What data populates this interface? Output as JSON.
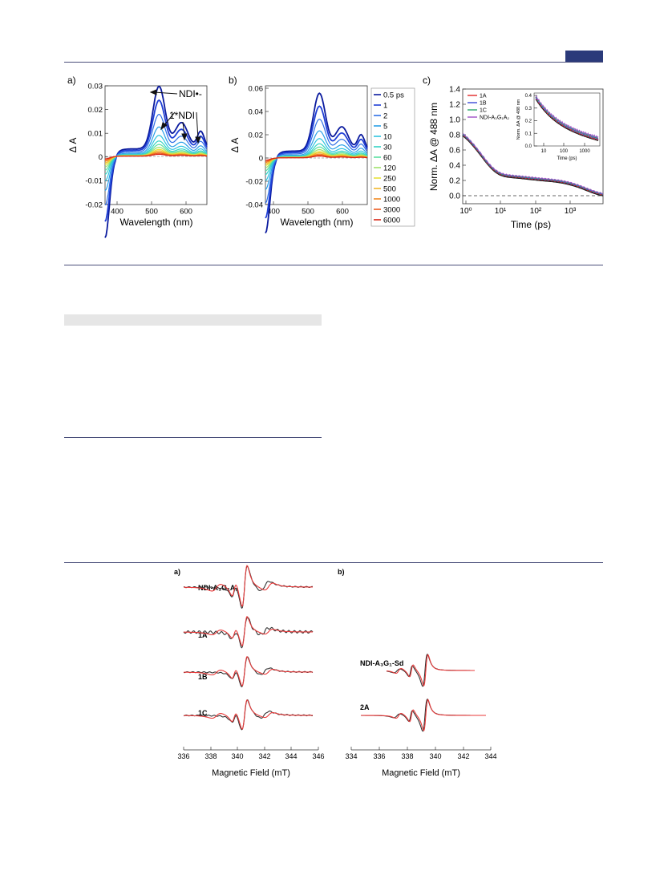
{
  "figure_top": {
    "panel_a": {
      "label": "a)",
      "xlabel": "Wavelength (nm)",
      "ylabel": "Δ A",
      "xticks": [
        "400",
        "500",
        "600"
      ],
      "yticks": [
        "0.03",
        "0.02",
        "0.01",
        "0",
        "-0.01",
        "-0.02"
      ],
      "annotations": [
        "NDI•-",
        "1*NDI"
      ]
    },
    "panel_b": {
      "label": "b)",
      "xlabel": "Wavelength (nm)",
      "ylabel": "Δ A",
      "xticks": [
        "400",
        "500",
        "600"
      ],
      "yticks": [
        "0.06",
        "0.04",
        "0.02",
        "0",
        "-0.02",
        "-0.04"
      ],
      "legend": [
        {
          "label": "0.5 ps",
          "color": "#0a1a9e"
        },
        {
          "label": "1",
          "color": "#1f3fd6"
        },
        {
          "label": "2",
          "color": "#2f6fe6"
        },
        {
          "label": "5",
          "color": "#2aa0e8"
        },
        {
          "label": "10",
          "color": "#2ec4e0"
        },
        {
          "label": "30",
          "color": "#34d4c4"
        },
        {
          "label": "60",
          "color": "#5adfa0"
        },
        {
          "label": "120",
          "color": "#9ee26a"
        },
        {
          "label": "250",
          "color": "#e8e23a"
        },
        {
          "label": "500",
          "color": "#f2b82a"
        },
        {
          "label": "1000",
          "color": "#f28a22"
        },
        {
          "label": "3000",
          "color": "#ec5a1c"
        },
        {
          "label": "6000",
          "color": "#d92414"
        }
      ]
    },
    "panel_c": {
      "label": "c)",
      "xlabel": "Time (ps)",
      "ylabel": "Norm. ΔA @ 488 nm",
      "xticks": [
        "10⁰",
        "10¹",
        "10²",
        "10³"
      ],
      "yticks": [
        "1.4",
        "1.2",
        "1.0",
        "0.8",
        "0.6",
        "0.4",
        "0.2",
        "0.0"
      ],
      "legend": [
        {
          "label": "1A",
          "color": "#e02828"
        },
        {
          "label": "1B",
          "color": "#3a4ad8"
        },
        {
          "label": "1C",
          "color": "#2aa86a"
        },
        {
          "label": "NDI-A₃G₁A₂",
          "color": "#a050c8"
        }
      ],
      "inset": {
        "xlabel": "Time (ps)",
        "ylabel": "Norm. ΔA @ 488 nm",
        "xticks": [
          "10",
          "100",
          "1000"
        ],
        "yticks": [
          "0.4",
          "0.3",
          "0.2",
          "0.1",
          "0.0"
        ]
      }
    }
  },
  "figure_bottom": {
    "panel_a": {
      "label": "a)",
      "traces": [
        "NDI-A₃G₁A₂",
        "1A",
        "1B",
        "1C"
      ],
      "xlabel": "Magnetic Field (mT)",
      "xticks": [
        "336",
        "338",
        "340",
        "342",
        "344",
        "346"
      ]
    },
    "panel_b": {
      "label": "b)",
      "traces": [
        "NDI-A₃G₁-Sd",
        "2A"
      ],
      "xlabel": "Magnetic Field (mT)",
      "xticks": [
        "334",
        "336",
        "338",
        "340",
        "342",
        "344"
      ]
    }
  },
  "colors": {
    "rule": "#4a4f7a",
    "header_tab": "#2b3a7a",
    "exp_trace": "#333333",
    "sim_trace": "#e83a3a"
  }
}
